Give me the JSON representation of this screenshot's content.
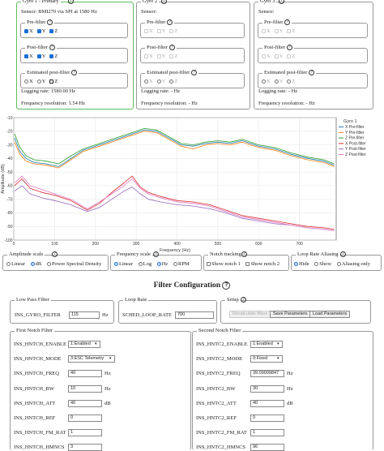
{
  "gyros": [
    {
      "title": "Gyro 1 - Primary",
      "sensor": "Sensor: BMI270 via SPI at 1580 Hz",
      "pre_filter_label": "Pre-filter",
      "post_filter_label": "Post-filter",
      "est_label": "Estimated post-filter",
      "axes": [
        "X",
        "Y",
        "Z"
      ],
      "logging_rate": "Logging rate: 1580.00 Hz",
      "freq_res": "Frequency resolution: 1.54 Hz"
    },
    {
      "title": "Gyro 2",
      "sensor": "Sensor:",
      "pre_filter_label": "Pre-filter",
      "post_filter_label": "Post-filter",
      "est_label": "Estimated post-filter",
      "axes": [
        "X",
        "Y",
        "Z"
      ],
      "logging_rate": "Logging rate: - Hz",
      "freq_res": "Frequency resolution: - Hz"
    },
    {
      "title": "Gyro 3",
      "sensor": "Sensor:",
      "pre_filter_label": "Pre-filter",
      "post_filter_label": "Post-filter",
      "est_label": "Estimated post-filter",
      "axes": [
        "X",
        "Y",
        "Z"
      ],
      "logging_rate": "Logging rate: - Hz",
      "freq_res": "Frequency resolution: - Hz"
    }
  ],
  "chart_data": {
    "type": "line",
    "title": "",
    "xlabel": "Frequency (Hz)",
    "ylabel": "Amplitude (dB)",
    "xlim": [
      0,
      790
    ],
    "ylim": [
      -100,
      -10
    ],
    "x_ticks": [
      "0",
      "100",
      "200",
      "300",
      "400",
      "500",
      "600",
      "700"
    ],
    "y_ticks": [
      "-10",
      "-20",
      "-30",
      "-40",
      "-50",
      "-60",
      "-70",
      "-80",
      "-90",
      "-100"
    ],
    "legend_title": "Gyro 1",
    "legend_position": "top-right",
    "grid": true,
    "series": [
      {
        "name": "X Pre-filter",
        "color": "#1f77b4",
        "x": [
          2,
          15,
          30,
          50,
          80,
          110,
          140,
          170,
          200,
          230,
          260,
          290,
          320,
          350,
          380,
          410,
          440,
          470,
          500,
          530,
          560,
          600,
          640,
          680,
          720,
          760,
          785
        ],
        "y": [
          -25,
          -35,
          -40,
          -43,
          -44,
          -46,
          -40,
          -34,
          -31,
          -28,
          -25,
          -22,
          -19,
          -20,
          -25,
          -30,
          -31,
          -29,
          -28,
          -29,
          -27,
          -31,
          -33,
          -37,
          -40,
          -42,
          -45
        ]
      },
      {
        "name": "Y Pre-filter",
        "color": "#ff7f0e",
        "x": [
          2,
          15,
          30,
          50,
          80,
          110,
          140,
          170,
          200,
          230,
          260,
          290,
          320,
          350,
          380,
          410,
          440,
          470,
          500,
          530,
          560,
          600,
          640,
          680,
          720,
          760,
          785
        ],
        "y": [
          -28,
          -37,
          -42,
          -44,
          -45,
          -47,
          -41,
          -35,
          -32,
          -29,
          -26,
          -23,
          -20,
          -21,
          -26,
          -31,
          -33,
          -30,
          -29,
          -30,
          -28,
          -32,
          -34,
          -38,
          -41,
          -43,
          -46
        ]
      },
      {
        "name": "Z Pre-filter",
        "color": "#2ca02c",
        "x": [
          2,
          15,
          30,
          50,
          80,
          110,
          140,
          170,
          200,
          230,
          260,
          290,
          320,
          350,
          380,
          410,
          440,
          470,
          500,
          530,
          560,
          600,
          640,
          680,
          720,
          760,
          785
        ],
        "y": [
          -22,
          -32,
          -38,
          -41,
          -42,
          -44,
          -38,
          -33,
          -30,
          -27,
          -24,
          -21,
          -18,
          -19,
          -24,
          -29,
          -30,
          -28,
          -27,
          -28,
          -26,
          -30,
          -32,
          -36,
          -39,
          -41,
          -44
        ]
      },
      {
        "name": "X Post-filter",
        "color": "#d62728",
        "x": [
          2,
          20,
          40,
          70,
          100,
          140,
          180,
          210,
          240,
          270,
          290,
          310,
          330,
          360,
          400,
          440,
          480,
          520,
          560,
          600,
          640,
          680,
          720,
          760,
          785
        ],
        "y": [
          -60,
          -55,
          -62,
          -65,
          -67,
          -71,
          -78,
          -73,
          -65,
          -58,
          -53,
          -61,
          -65,
          -68,
          -71,
          -72,
          -74,
          -78,
          -82,
          -84,
          -86,
          -88,
          -90,
          -91,
          -92
        ]
      },
      {
        "name": "Y Post-filter",
        "color": "#9467bd",
        "x": [
          2,
          20,
          40,
          70,
          100,
          140,
          180,
          210,
          240,
          270,
          290,
          310,
          330,
          360,
          400,
          440,
          480,
          520,
          560,
          600,
          640,
          680,
          720,
          760,
          785
        ],
        "y": [
          -64,
          -60,
          -66,
          -69,
          -71,
          -74,
          -79,
          -76,
          -70,
          -64,
          -61,
          -66,
          -70,
          -72,
          -74,
          -75,
          -77,
          -80,
          -84,
          -86,
          -88,
          -89,
          -91,
          -92,
          -93
        ]
      },
      {
        "name": "Z Post-filter",
        "color": "#e377c2",
        "x": [
          2,
          20,
          40,
          70,
          100,
          140,
          180,
          210,
          240,
          270,
          290,
          310,
          330,
          360,
          400,
          440,
          480,
          520,
          560,
          600,
          640,
          680,
          720,
          760,
          785
        ],
        "y": [
          -58,
          -53,
          -60,
          -63,
          -66,
          -70,
          -77,
          -72,
          -66,
          -60,
          -55,
          -62,
          -66,
          -69,
          -72,
          -73,
          -75,
          -79,
          -83,
          -85,
          -87,
          -89,
          -91,
          -92,
          -93
        ]
      }
    ]
  },
  "controls": {
    "amp_title": "Amplitude scale",
    "amp_options": [
      "Linear",
      "dB",
      "Power Spectral Density"
    ],
    "freq_title": "Frequency scale",
    "freq_options": [
      "Linear",
      "Log",
      "Hz",
      "RPM"
    ],
    "notch_title": "Notch tracking",
    "notch_options": [
      "Show notch 1",
      "Show notch 2"
    ],
    "alias_title": "Loop Rate Aliasing",
    "alias_options": [
      "Hide",
      "Show",
      "Aliasing only"
    ]
  },
  "filter": {
    "heading": "Filter Configuration",
    "lowpass_title": "Low Pass Filter",
    "gyro_filter_label": "INS_GYRO_FILTER",
    "gyro_filter_value": "115",
    "gyro_filter_unit": "Hz",
    "looprate_title": "Loop Rate",
    "sched_label": "SCHED_LOOP_RATE",
    "sched_value": "700",
    "setup_title": "Setup",
    "recalc_label": "Recalculate filters",
    "save_label": "Save Parameters",
    "load_label": "Load Parameters",
    "notch1": {
      "title": "First Notch Filter",
      "rows": [
        {
          "label": "INS_HNTCH_ENABLE",
          "value": "1:Enabled",
          "kind": "select",
          "unit": ""
        },
        {
          "label": "INS_HNTCH_MODE",
          "value": "3:ESC Telemetry",
          "kind": "select",
          "unit": ""
        },
        {
          "label": "INS_HNTCH_FREQ",
          "value": "40",
          "kind": "input",
          "unit": "Hz"
        },
        {
          "label": "INS_HNTCH_BW",
          "value": "10",
          "kind": "input",
          "unit": "Hz"
        },
        {
          "label": "INS_HNTCH_ATT",
          "value": "40",
          "kind": "input",
          "unit": "dB"
        },
        {
          "label": "INS_HNTCH_REF",
          "value": "0",
          "kind": "input",
          "unit": ""
        },
        {
          "label": "INS_HNTCH_FM_RAT",
          "value": "1",
          "kind": "input",
          "unit": ""
        },
        {
          "label": "INS_HNTCH_HMNCS",
          "value": "3",
          "kind": "input",
          "unit": ""
        }
      ]
    },
    "notch2": {
      "title": "Second Notch Filter",
      "rows": [
        {
          "label": "INS_HNTC2_ENABLE",
          "value": "1:Enabled",
          "kind": "select",
          "unit": ""
        },
        {
          "label": "INS_HNTC2_MODE",
          "value": "0:Fixed",
          "kind": "select",
          "unit": ""
        },
        {
          "label": "INS_HNTC2_FREQ",
          "value": "39.09999847",
          "kind": "input",
          "unit": "Hz"
        },
        {
          "label": "INS_HNTC2_BW",
          "value": "30",
          "kind": "input",
          "unit": "Hz"
        },
        {
          "label": "INS_HNTC2_ATT",
          "value": "40",
          "kind": "input",
          "unit": "dB"
        },
        {
          "label": "INS_HNTC2_REF",
          "value": "0",
          "kind": "input",
          "unit": ""
        },
        {
          "label": "INS_HNTC2_FM_RAT",
          "value": "1",
          "kind": "input",
          "unit": ""
        },
        {
          "label": "INS_HNTC2_HMNCS",
          "value": "96",
          "kind": "input",
          "unit": ""
        }
      ]
    }
  }
}
